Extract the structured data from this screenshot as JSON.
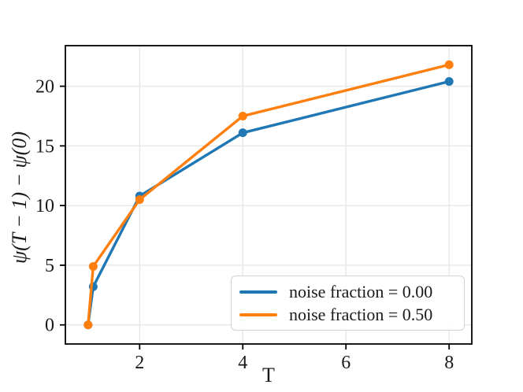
{
  "figure": {
    "xlabel": "T",
    "ylabel": "ψ(T − 1) − ψ(0)"
  },
  "chart_data": {
    "type": "line",
    "title": "",
    "xlabel": "T",
    "ylabel": "psi(T-1) - psi(0)",
    "xlim": [
      0.56,
      8.44
    ],
    "ylim": [
      -1.6,
      23.4
    ],
    "xticks": [
      2,
      4,
      6,
      8
    ],
    "yticks": [
      0,
      5,
      10,
      15,
      20
    ],
    "grid": true,
    "legend_position": "lower right",
    "x": [
      1,
      1.1,
      2,
      4,
      8
    ],
    "series": [
      {
        "name": "noise fraction = 0.00",
        "color": "#1f77b4",
        "values": [
          0,
          3.2,
          10.8,
          16.1,
          20.4
        ]
      },
      {
        "name": "noise fraction = 0.50",
        "color": "#ff7f0e",
        "values": [
          0,
          4.9,
          10.5,
          17.5,
          21.8
        ]
      }
    ],
    "style": {
      "grid_color": "#e8e8e8",
      "spine_color": "#000000",
      "tick_label_color": "#1a1a1a"
    }
  }
}
